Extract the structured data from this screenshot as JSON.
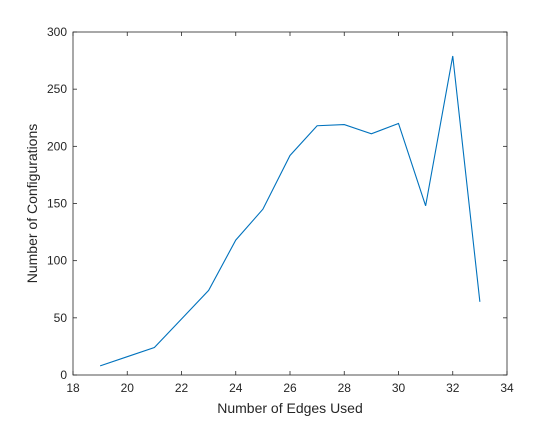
{
  "chart_data": {
    "type": "line",
    "title": "",
    "xlabel": "Number of Edges Used",
    "ylabel": "Number of Configurations",
    "xlim": [
      18,
      34
    ],
    "ylim": [
      0,
      300
    ],
    "xticks": [
      18,
      20,
      22,
      24,
      26,
      28,
      30,
      32,
      34
    ],
    "yticks": [
      0,
      50,
      100,
      150,
      200,
      250,
      300
    ],
    "grid": false,
    "series": [
      {
        "color": "#0072BD",
        "x": [
          19,
          20,
          21,
          22,
          23,
          24,
          25,
          26,
          27,
          28,
          29,
          30,
          31,
          32,
          33
        ],
        "y": [
          8,
          16,
          24,
          49,
          74,
          118,
          145,
          192,
          218,
          219,
          211,
          220,
          148,
          279,
          64
        ]
      }
    ]
  },
  "colors": {
    "axis": "#262626",
    "line": "#0072BD",
    "background": "#ffffff"
  }
}
